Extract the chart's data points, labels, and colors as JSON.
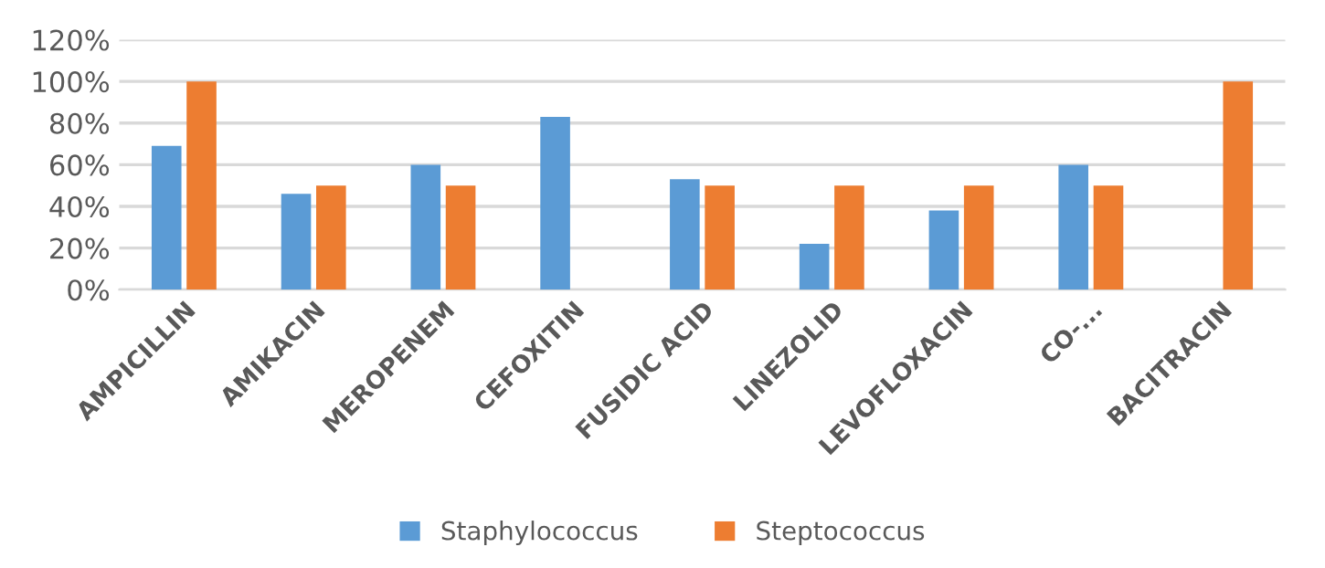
{
  "chart_data": {
    "type": "bar",
    "categories": [
      "AMPICILLIN",
      "AMIKACIN",
      "MEROPENEM",
      "CEFOXITIN",
      "FUSIDIC ACID",
      "LINEZOLID",
      "LEVOFLOXACIN",
      "CO-...",
      "BACITRACIN"
    ],
    "series": [
      {
        "name": "Staphylococcus",
        "color": "#5b9bd5",
        "values": [
          69,
          46,
          60,
          83,
          53,
          22,
          38,
          60,
          null
        ]
      },
      {
        "name": "Steptococcus",
        "color": "#ed7d31",
        "values": [
          100,
          50,
          50,
          null,
          50,
          50,
          50,
          50,
          100
        ]
      }
    ],
    "ylim": [
      0,
      120
    ],
    "yticks": [
      {
        "value": 0,
        "label": "0%"
      },
      {
        "value": 20,
        "label": "20%"
      },
      {
        "value": 40,
        "label": "40%"
      },
      {
        "value": 60,
        "label": "60%"
      },
      {
        "value": 80,
        "label": "80%"
      },
      {
        "value": 100,
        "label": "100%"
      },
      {
        "value": 120,
        "label": "120%"
      }
    ],
    "grid": "y",
    "legend": "bottom"
  }
}
